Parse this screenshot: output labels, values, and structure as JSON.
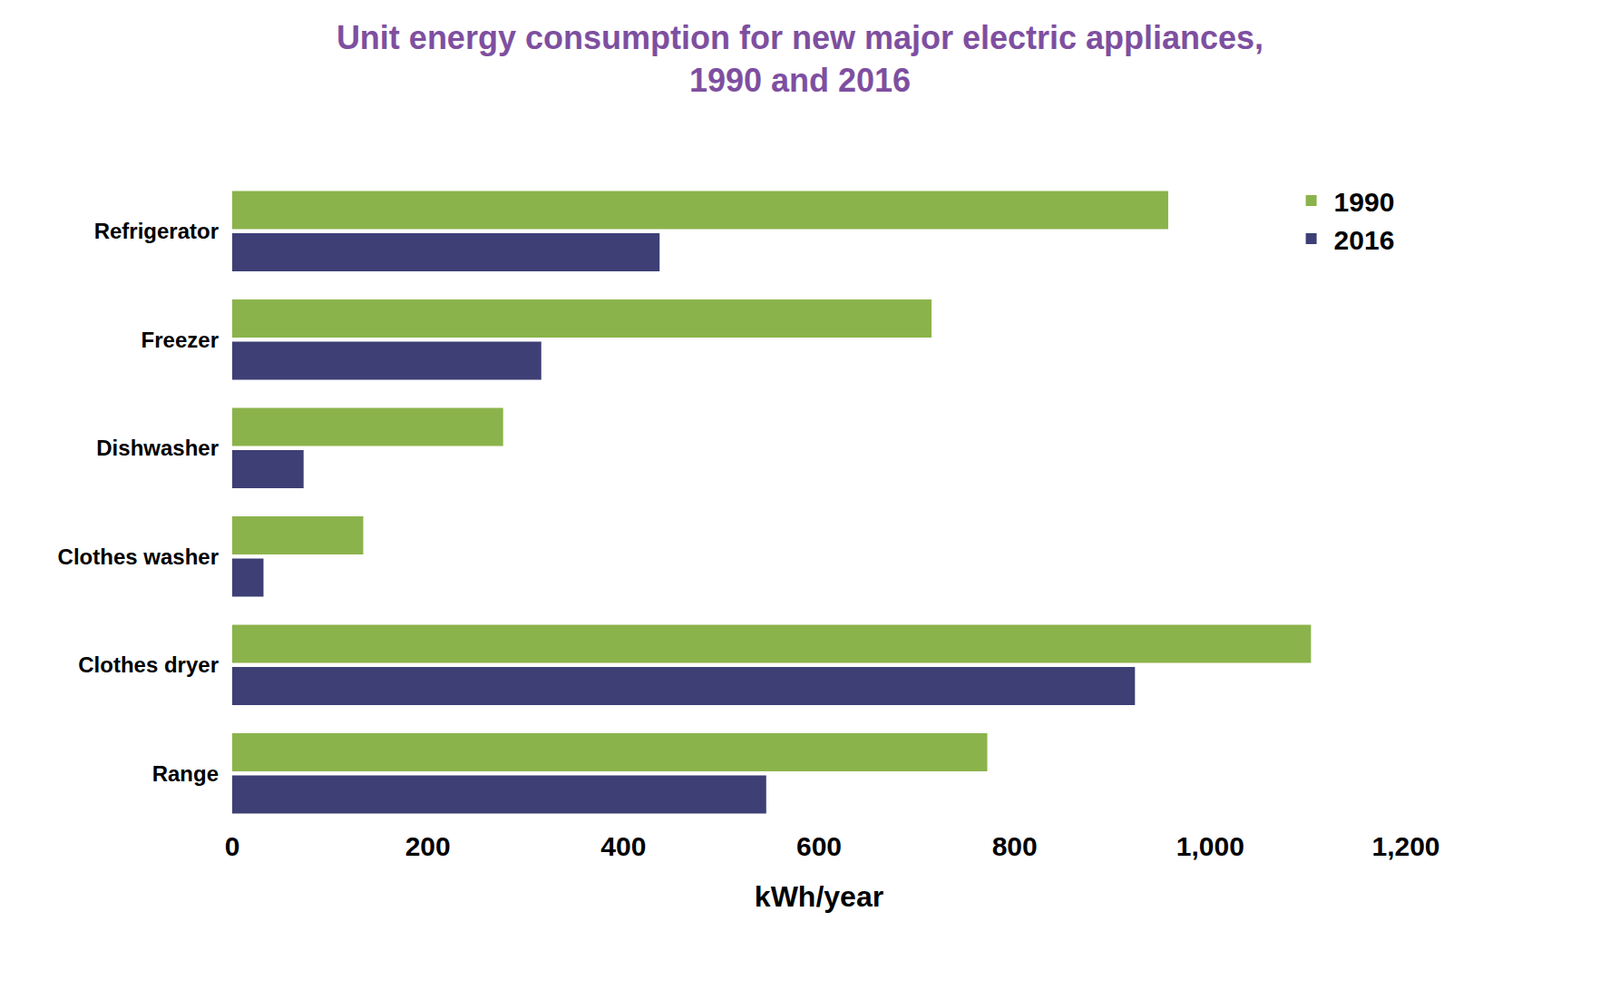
{
  "chart_data": {
    "type": "bar",
    "orientation": "horizontal",
    "title": "Unit energy consumption for new major electric appliances, 1990 and 2016",
    "x_label": "kWh/year",
    "categories": [
      "Refrigerator",
      "Freezer",
      "Dishwasher",
      "Clothes washer",
      "Clothes dryer",
      "Range"
    ],
    "series": [
      {
        "name": "1990",
        "color": "#8bb34b",
        "values": [
          957,
          715,
          277,
          134,
          1103,
          772
        ]
      },
      {
        "name": "2016",
        "color": "#3d3f75",
        "values": [
          437,
          316,
          73,
          32,
          923,
          546
        ]
      }
    ],
    "xlim": [
      0,
      1200
    ],
    "xticks": [
      0,
      200,
      400,
      600,
      800,
      {
        "value": 1000,
        "label": "1,000"
      },
      {
        "value": 1200,
        "label": "1,200"
      }
    ],
    "grid": false,
    "legend": "top right"
  }
}
